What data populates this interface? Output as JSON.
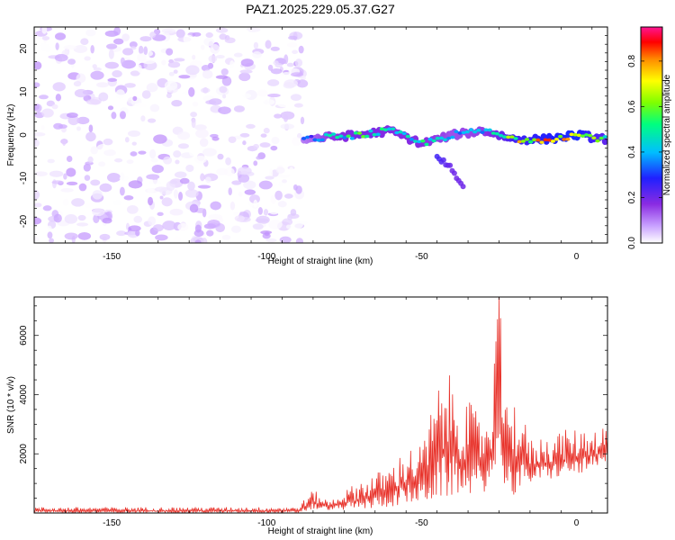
{
  "figure": {
    "title": "PAZ1.2025.229.05.37.G27"
  },
  "chart_data": [
    {
      "type": "heatmap",
      "xlabel": "Height of straight line (km)",
      "ylabel": "Frequency (Hz)",
      "xlim": [
        -175,
        10
      ],
      "ylim": [
        -25,
        25
      ],
      "x_ticks": [
        "-150",
        "-100",
        "-50",
        "0"
      ],
      "y_ticks": [
        "-20",
        "-10",
        "0",
        "10",
        "20"
      ],
      "colorbar": {
        "label": "Normalized spectral amplitude",
        "range": [
          0,
          0.95
        ],
        "ticks": [
          "0.0",
          "0.2",
          "0.4",
          "0.6",
          "0.8"
        ],
        "colors": [
          "#e6e6ff",
          "#8a2be2",
          "#3b3bff",
          "#00bfff",
          "#00ff7f",
          "#7fff00",
          "#ffff00",
          "#ff8c00",
          "#ff0000",
          "#ff1493"
        ]
      },
      "regions": {
        "noise_x": [
          -175,
          -88
        ],
        "noise_amplitude_range": [
          0.0,
          0.15
        ],
        "signal_track": [
          {
            "x": -88,
            "freq": -1,
            "amp": 0.3
          },
          {
            "x": -80,
            "freq": -0.5,
            "amp": 0.45
          },
          {
            "x": -70,
            "freq": 0,
            "amp": 0.55
          },
          {
            "x": -60,
            "freq": 1,
            "amp": 0.5
          },
          {
            "x": -50,
            "freq": -2,
            "amp": 0.5
          },
          {
            "x": -40,
            "freq": 0,
            "amp": 0.4
          },
          {
            "x": -30,
            "freq": 1,
            "amp": 0.45
          },
          {
            "x": -20,
            "freq": -1,
            "amp": 0.7
          },
          {
            "x": -10,
            "freq": -1,
            "amp": 0.8
          },
          {
            "x": 0,
            "freq": 0,
            "amp": 0.85
          },
          {
            "x": 10,
            "freq": -1,
            "amp": 0.6
          }
        ],
        "secondary_track": [
          {
            "x": -45,
            "freq": -5,
            "amp": 0.25
          },
          {
            "x": -40,
            "freq": -8,
            "amp": 0.2
          },
          {
            "x": -36,
            "freq": -13,
            "amp": 0.2
          }
        ]
      }
    },
    {
      "type": "line",
      "xlabel": "Height of straight line (km)",
      "ylabel": "SNR (10 * v/v)",
      "xlim": [
        -175,
        10
      ],
      "ylim": [
        0,
        7300
      ],
      "x_ticks": [
        "-150",
        "-100",
        "-50",
        "0"
      ],
      "y_ticks": [
        "2000",
        "4000",
        "6000"
      ],
      "series": [
        {
          "color": "#e8322a",
          "envelope": [
            {
              "x": -175,
              "low": 0,
              "high": 200
            },
            {
              "x": -90,
              "low": 0,
              "high": 200
            },
            {
              "x": -85,
              "low": 100,
              "high": 800
            },
            {
              "x": -80,
              "low": 100,
              "high": 400
            },
            {
              "x": -70,
              "low": 100,
              "high": 1100
            },
            {
              "x": -60,
              "low": 200,
              "high": 1600
            },
            {
              "x": -55,
              "low": 300,
              "high": 2200
            },
            {
              "x": -50,
              "low": 300,
              "high": 2300
            },
            {
              "x": -45,
              "low": 400,
              "high": 4200
            },
            {
              "x": -42,
              "low": 500,
              "high": 4800
            },
            {
              "x": -35,
              "low": 600,
              "high": 3800
            },
            {
              "x": -30,
              "low": 700,
              "high": 3200
            },
            {
              "x": -27,
              "low": 900,
              "high": 4300
            },
            {
              "x": -25,
              "low": 1000,
              "high": 7300
            },
            {
              "x": -22,
              "low": 900,
              "high": 3000
            },
            {
              "x": -20,
              "low": 500,
              "high": 4300
            },
            {
              "x": -15,
              "low": 1000,
              "high": 2500
            },
            {
              "x": -5,
              "low": 1200,
              "high": 2800
            },
            {
              "x": 5,
              "low": 1400,
              "high": 2900
            },
            {
              "x": 10,
              "low": 1600,
              "high": 3000
            }
          ]
        }
      ]
    }
  ]
}
